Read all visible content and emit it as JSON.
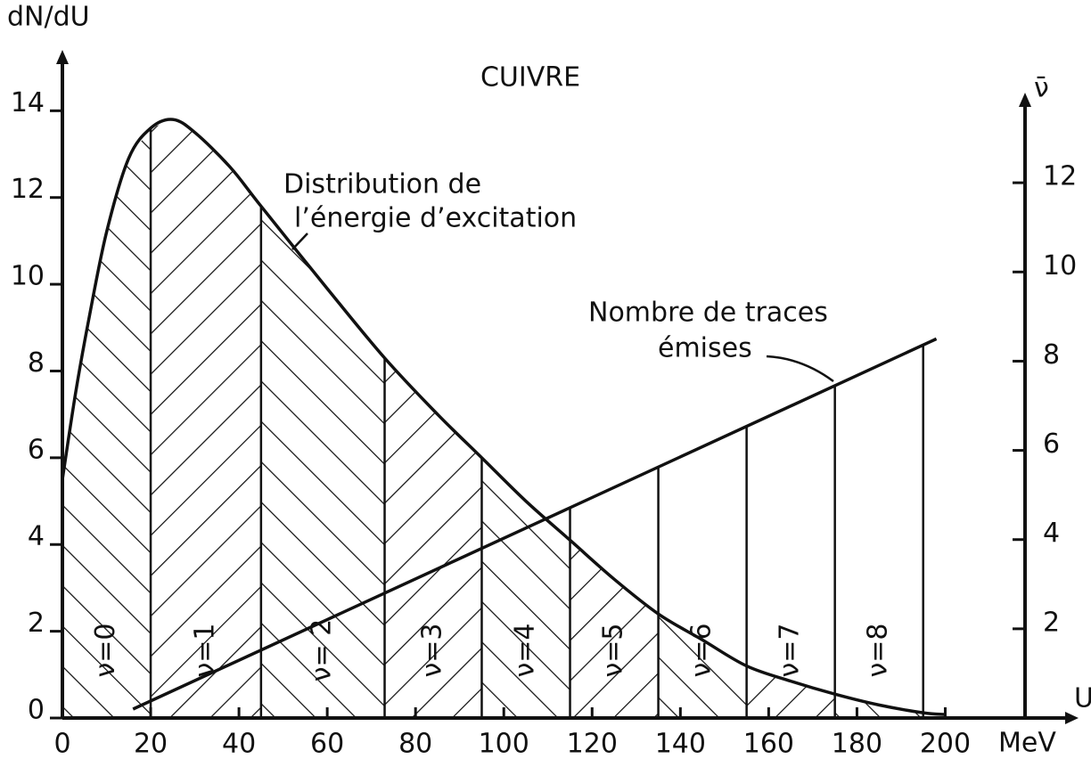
{
  "chart_data": {
    "type": "line",
    "title": "CUIVRE",
    "y_label": "dN/dU",
    "y2_label": "ν̄",
    "x_label": "U",
    "x_unit": "MeV",
    "xlim": [
      0,
      210
    ],
    "xticks": [
      0,
      20,
      40,
      60,
      80,
      100,
      120,
      140,
      160,
      180,
      200
    ],
    "ylim": [
      0,
      14.5
    ],
    "yticks": [
      0,
      2,
      4,
      6,
      8,
      10,
      12,
      14
    ],
    "y2lim": [
      0,
      14.1
    ],
    "y2ticks": [
      2,
      4,
      6,
      8,
      10,
      12
    ],
    "hatched": true,
    "series": [
      {
        "label": [
          "Distribution de",
          "l’énergie d’excitation"
        ],
        "color": "#111111",
        "x": [
          0,
          3,
          6,
          10,
          15,
          20,
          25,
          30,
          38,
          45,
          60,
          73,
          85,
          95,
          105,
          115,
          125,
          135,
          145,
          155,
          165,
          175,
          185,
          195,
          200
        ],
        "values": [
          5.5,
          7.5,
          9.2,
          11.2,
          12.9,
          13.6,
          13.8,
          13.5,
          12.7,
          11.8,
          9.9,
          8.3,
          7.0,
          6.0,
          5.0,
          4.1,
          3.2,
          2.4,
          1.8,
          1.2,
          0.85,
          0.55,
          0.3,
          0.12,
          0.08
        ]
      },
      {
        "label": [
          "Nombre de traces",
          "émises"
        ],
        "color": "#111111",
        "axis": "y2",
        "x": [
          16,
          198
        ],
        "values": [
          0.2,
          8.5
        ]
      }
    ],
    "regions": {
      "boundaries": [
        20,
        45,
        73,
        95,
        115,
        135,
        155,
        175,
        195
      ],
      "labels": [
        "ν=0",
        "ν=1",
        "ν= 2",
        "ν=3",
        "ν=4",
        "ν=5",
        "ν=6",
        "ν=7",
        "ν=8"
      ]
    }
  }
}
